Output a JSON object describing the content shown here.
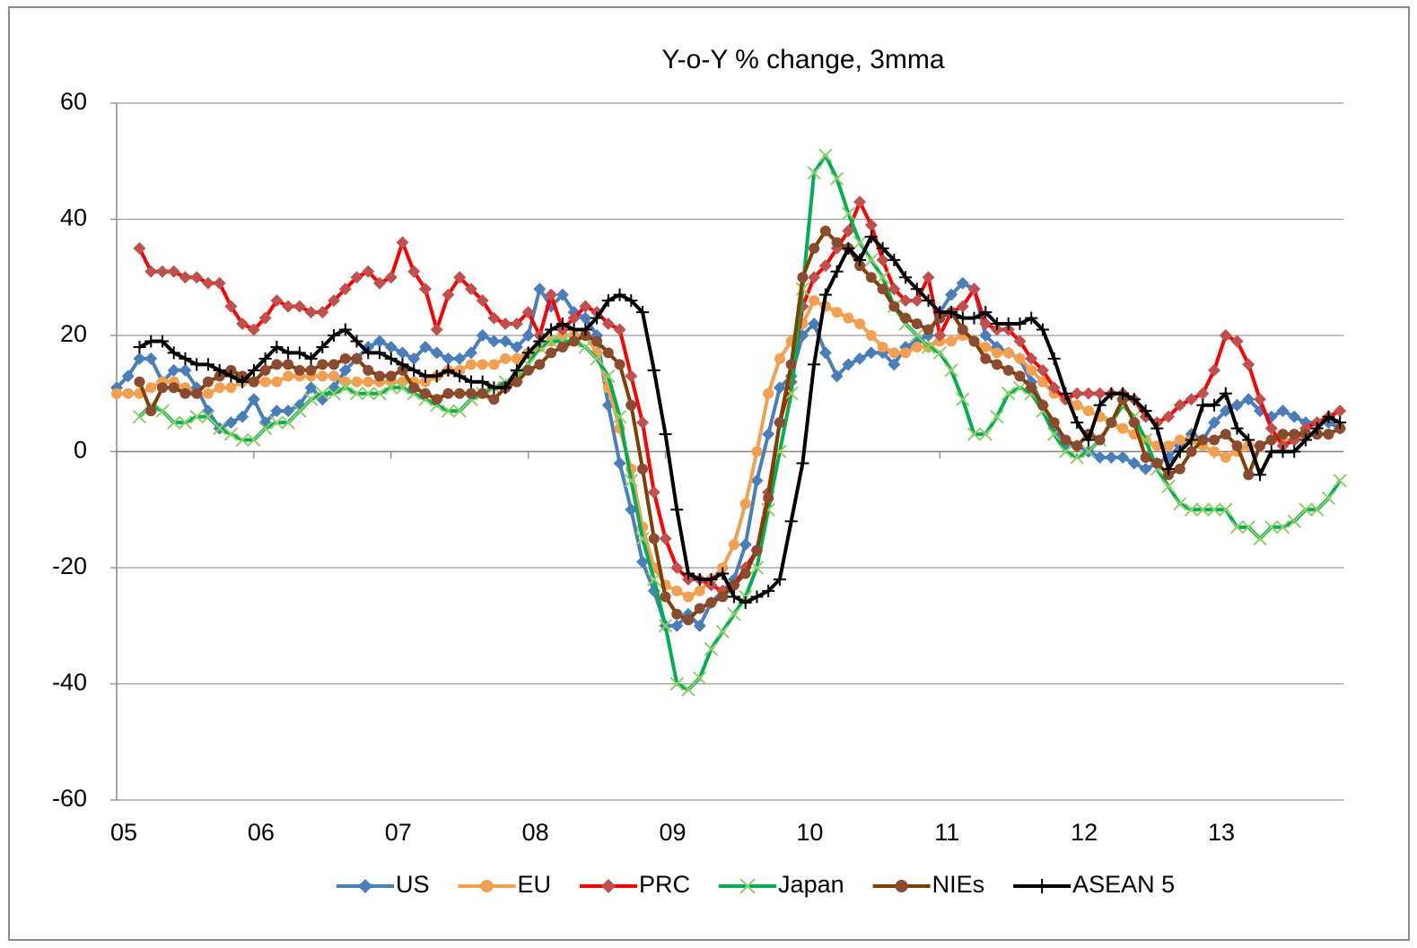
{
  "chart_data": {
    "type": "line",
    "title": "Y-o-Y % change, 3mma",
    "categories": [
      "05",
      null,
      null,
      null,
      null,
      null,
      null,
      null,
      null,
      null,
      null,
      null,
      "06",
      null,
      null,
      null,
      null,
      null,
      null,
      null,
      null,
      null,
      null,
      null,
      "07",
      null,
      null,
      null,
      null,
      null,
      null,
      null,
      null,
      null,
      null,
      null,
      "08",
      null,
      null,
      null,
      null,
      null,
      null,
      null,
      null,
      null,
      null,
      null,
      "09",
      null,
      null,
      null,
      null,
      null,
      null,
      null,
      null,
      null,
      null,
      null,
      "10",
      null,
      null,
      null,
      null,
      null,
      null,
      null,
      null,
      null,
      null,
      null,
      "11",
      null,
      null,
      null,
      null,
      null,
      null,
      null,
      null,
      null,
      null,
      null,
      "12",
      null,
      null,
      null,
      null,
      null,
      null,
      null,
      null,
      null,
      null,
      null,
      "13",
      null,
      null,
      null,
      null,
      null,
      null,
      null,
      null,
      null,
      null,
      null
    ],
    "ylim": [
      -60,
      60
    ],
    "yticks": [
      -60,
      -40,
      -20,
      0,
      20,
      40,
      60
    ],
    "grid": true,
    "legend": "bottom",
    "series": [
      {
        "name": "US",
        "color": "#4a7ebb",
        "marker": "diamond",
        "values": [
          11,
          13,
          16,
          16,
          12,
          14,
          14,
          11,
          7,
          4,
          5,
          6,
          9,
          5,
          7,
          7,
          8,
          11,
          9,
          11,
          14,
          16,
          18,
          19,
          18,
          17,
          16,
          18,
          17,
          16,
          16,
          17,
          20,
          19,
          19,
          18,
          20,
          28,
          25,
          27,
          24,
          23,
          20,
          8,
          -2,
          -10,
          -19,
          -24,
          -30,
          -30,
          -28,
          -30,
          -26,
          -24,
          -22,
          -16,
          -5,
          3,
          11,
          13,
          20,
          22,
          17,
          13,
          15,
          16,
          17,
          17,
          15,
          18,
          19,
          20,
          24,
          27,
          29,
          28,
          20,
          18,
          17,
          16,
          12,
          8,
          4,
          1,
          1,
          0,
          -1,
          -1,
          -1,
          -2,
          -3,
          -2,
          -1,
          1,
          3,
          2,
          5,
          7,
          8,
          9,
          7,
          6,
          7,
          6,
          5,
          5,
          5,
          4
        ]
      },
      {
        "name": "EU",
        "color": "#f0a050",
        "marker": "circle",
        "values": [
          10,
          10,
          10,
          11,
          12,
          12,
          11,
          10,
          10,
          11,
          11,
          12,
          12,
          12,
          12,
          13,
          13,
          13,
          13,
          13,
          12,
          12,
          12,
          12,
          12,
          12,
          12,
          12,
          13,
          14,
          14,
          15,
          15,
          15,
          16,
          16,
          17,
          18,
          19,
          20,
          20,
          20,
          17,
          11,
          4,
          -3,
          -13,
          -20,
          -23,
          -24,
          -25,
          -24,
          -22,
          -20,
          -16,
          -9,
          0,
          10,
          16,
          19,
          22,
          26,
          25,
          24,
          23,
          22,
          20,
          18,
          17,
          17,
          18,
          18,
          19,
          19,
          20,
          19,
          18,
          17,
          17,
          16,
          14,
          12,
          10,
          9,
          8,
          7,
          6,
          5,
          4,
          3,
          2,
          1,
          1,
          2,
          2,
          1,
          0,
          -1,
          0,
          1,
          1,
          2,
          2,
          2,
          3,
          3,
          3,
          4
        ]
      },
      {
        "name": "PRC",
        "color": "#ff0000",
        "marker_color": "#c0504d",
        "marker": "diamond",
        "values": [
          null,
          null,
          35,
          31,
          31,
          31,
          30,
          30,
          29,
          29,
          25,
          22,
          21,
          23,
          26,
          25,
          25,
          24,
          24,
          26,
          28,
          30,
          31,
          29,
          30,
          36,
          31,
          28,
          21,
          27,
          30,
          28,
          26,
          23,
          22,
          22,
          24,
          20,
          27,
          21,
          23,
          25,
          24,
          22,
          21,
          13,
          5,
          -7,
          -15,
          -20,
          -22,
          -22,
          -23,
          -24,
          -23,
          -20,
          -17,
          -7,
          5,
          12,
          25,
          30,
          32,
          35,
          38,
          43,
          39,
          33,
          28,
          26,
          26,
          30,
          20,
          24,
          25,
          28,
          22,
          21,
          21,
          19,
          16,
          14,
          11,
          9,
          10,
          10,
          10,
          10,
          10,
          9,
          6,
          5,
          6,
          8,
          9,
          10,
          14,
          20,
          19,
          15,
          9,
          4,
          1,
          2,
          4,
          5,
          6,
          7
        ]
      },
      {
        "name": "Japan",
        "color": "#00b050",
        "marker_color": "#8fce6a",
        "marker": "x",
        "values": [
          null,
          null,
          6,
          8,
          7,
          5,
          5,
          6,
          6,
          4,
          3,
          2,
          2,
          4,
          5,
          5,
          7,
          9,
          10,
          10,
          11,
          10,
          10,
          10,
          11,
          11,
          10,
          9,
          8,
          7,
          7,
          9,
          10,
          11,
          12,
          13,
          15,
          18,
          19,
          19,
          19,
          18,
          16,
          13,
          6,
          -5,
          -15,
          -22,
          -30,
          -40,
          -41,
          -39,
          -34,
          -31,
          -28,
          -25,
          -20,
          -10,
          0,
          10,
          28,
          48,
          51,
          47,
          41,
          36,
          33,
          30,
          25,
          22,
          20,
          18,
          17,
          14,
          9,
          3,
          3,
          6,
          10,
          11,
          10,
          7,
          3,
          0,
          -1,
          0,
          2,
          5,
          8,
          6,
          2,
          -3,
          -6,
          -9,
          -10,
          -10,
          -10,
          -10,
          -13,
          -13,
          -15,
          -13,
          -13,
          -12,
          -10,
          -10,
          -8,
          -5
        ]
      },
      {
        "name": "NIEs",
        "color": "#7f3f00",
        "marker_color": "#8b4b30",
        "marker": "circle",
        "values": [
          null,
          null,
          12,
          7,
          11,
          11,
          10,
          10,
          12,
          13,
          14,
          13,
          12,
          14,
          15,
          15,
          14,
          14,
          15,
          15,
          16,
          16,
          14,
          13,
          13,
          14,
          11,
          10,
          9,
          10,
          10,
          10,
          10,
          9,
          11,
          12,
          14,
          15,
          17,
          18,
          19,
          20,
          19,
          17,
          15,
          8,
          -3,
          -15,
          -25,
          -28,
          -29,
          -27,
          -26,
          -25,
          -23,
          -21,
          -17,
          -8,
          5,
          15,
          30,
          35,
          38,
          36,
          35,
          32,
          30,
          28,
          25,
          23,
          22,
          21,
          23,
          24,
          21,
          19,
          16,
          15,
          14,
          13,
          11,
          8,
          5,
          2,
          1,
          3,
          2,
          5,
          9,
          5,
          -1,
          -2,
          -4,
          -3,
          0,
          2,
          2,
          3,
          1,
          -4,
          1,
          2,
          3,
          3,
          3,
          3,
          3,
          4
        ]
      },
      {
        "name": "ASEAN 5",
        "color": "#000000",
        "marker": "plus",
        "values": [
          null,
          null,
          18,
          19,
          19,
          17,
          16,
          15,
          15,
          14,
          13,
          12,
          14,
          16,
          18,
          17,
          17,
          16,
          18,
          20,
          21,
          19,
          17,
          17,
          16,
          15,
          14,
          13,
          13,
          14,
          13,
          12,
          12,
          11,
          11,
          14,
          17,
          19,
          21,
          22,
          21,
          21,
          23,
          26,
          27,
          26,
          24,
          14,
          3,
          -10,
          -21,
          -22,
          -22,
          -21,
          -25,
          -26,
          -25,
          -24,
          -22,
          -12,
          -2,
          15,
          27,
          31,
          35,
          33,
          37,
          35,
          33,
          30,
          28,
          26,
          24,
          24,
          23,
          23,
          24,
          22,
          22,
          22,
          23,
          21,
          16,
          10,
          5,
          2,
          8,
          10,
          10,
          9,
          7,
          4,
          -3,
          0,
          2,
          8,
          8,
          10,
          4,
          2,
          -4,
          0,
          0,
          0,
          2,
          4,
          6,
          5
        ]
      }
    ]
  }
}
